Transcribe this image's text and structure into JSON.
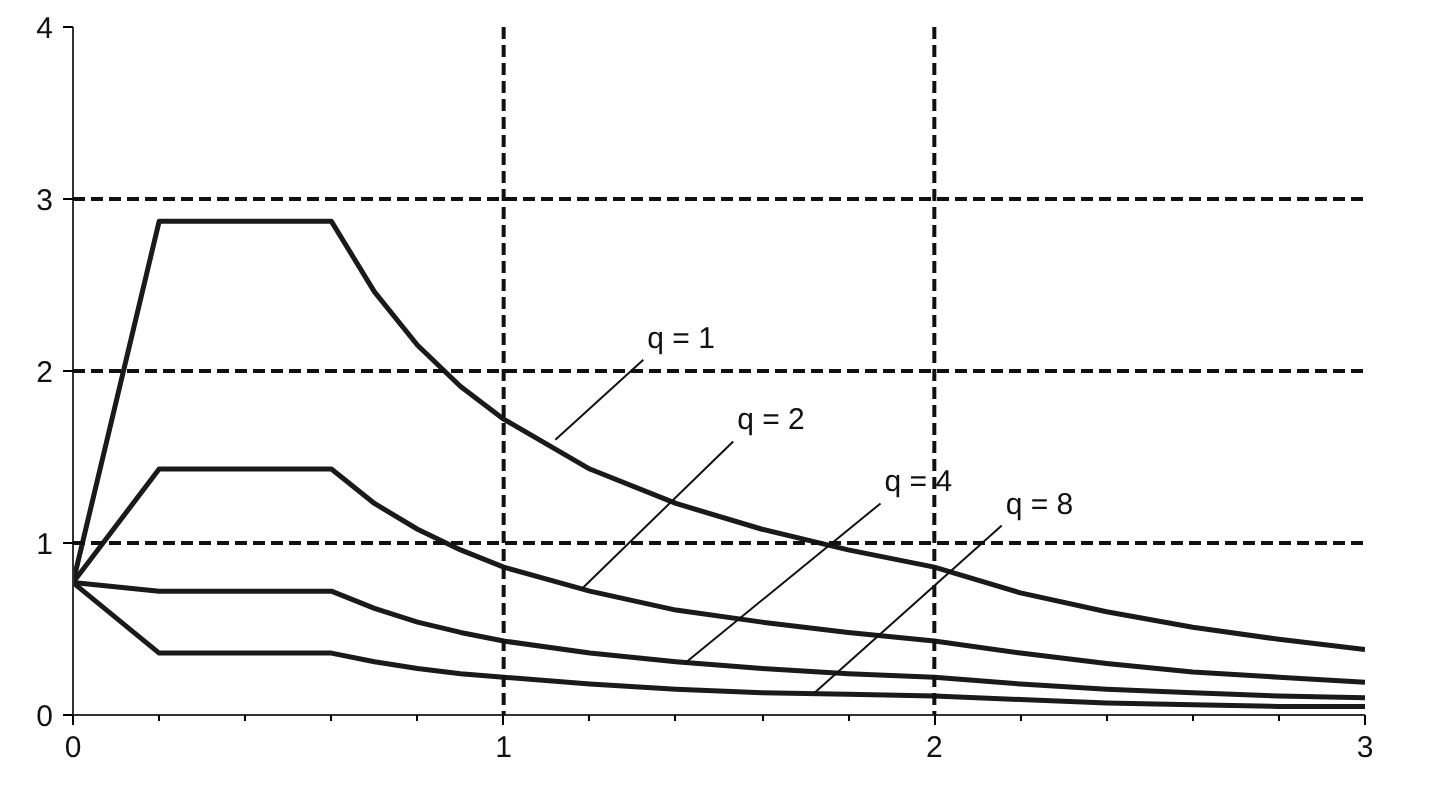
{
  "chart_data": {
    "type": "line",
    "x": [
      0,
      0.2,
      0.6,
      0.7,
      0.8,
      0.9,
      1.0,
      1.2,
      1.4,
      1.6,
      1.8,
      2.0,
      2.2,
      2.4,
      2.6,
      2.8,
      3.0
    ],
    "series": [
      {
        "color": "#1a1a1a",
        "values": [
          0.77,
          2.87,
          2.87,
          2.46,
          2.15,
          1.91,
          1.72,
          1.43,
          1.23,
          1.08,
          0.96,
          0.86,
          0.71,
          0.6,
          0.51,
          0.44,
          0.38
        ]
      },
      {
        "color": "#1a1a1a",
        "values": [
          0.77,
          1.43,
          1.43,
          1.23,
          1.08,
          0.96,
          0.86,
          0.72,
          0.61,
          0.54,
          0.48,
          0.43,
          0.36,
          0.3,
          0.25,
          0.22,
          0.19
        ]
      },
      {
        "color": "#1a1a1a",
        "values": [
          0.77,
          0.72,
          0.72,
          0.62,
          0.54,
          0.48,
          0.43,
          0.36,
          0.31,
          0.27,
          0.24,
          0.22,
          0.18,
          0.15,
          0.13,
          0.11,
          0.1
        ]
      },
      {
        "color": "#1a1a1a",
        "values": [
          0.77,
          0.36,
          0.36,
          0.31,
          0.27,
          0.24,
          0.22,
          0.18,
          0.15,
          0.13,
          0.12,
          0.11,
          0.09,
          0.07,
          0.06,
          0.05,
          0.05
        ]
      }
    ],
    "annotations": [
      {
        "text": "q = 1",
        "x": 1.12,
        "y": 1.6
      },
      {
        "text": "q = 2",
        "x": 1.18,
        "y": 0.73
      },
      {
        "text": "q = 4",
        "x": 1.42,
        "y": 0.3
      },
      {
        "text": "q = 8",
        "x": 1.72,
        "y": 0.125
      }
    ],
    "xlim": [
      0,
      3
    ],
    "ylim": [
      0,
      4
    ],
    "xticks": [
      0,
      1,
      2,
      3
    ],
    "yticks": [
      0,
      1,
      2,
      3,
      4
    ],
    "grid": true,
    "marker": "none",
    "line_style": "solid"
  }
}
